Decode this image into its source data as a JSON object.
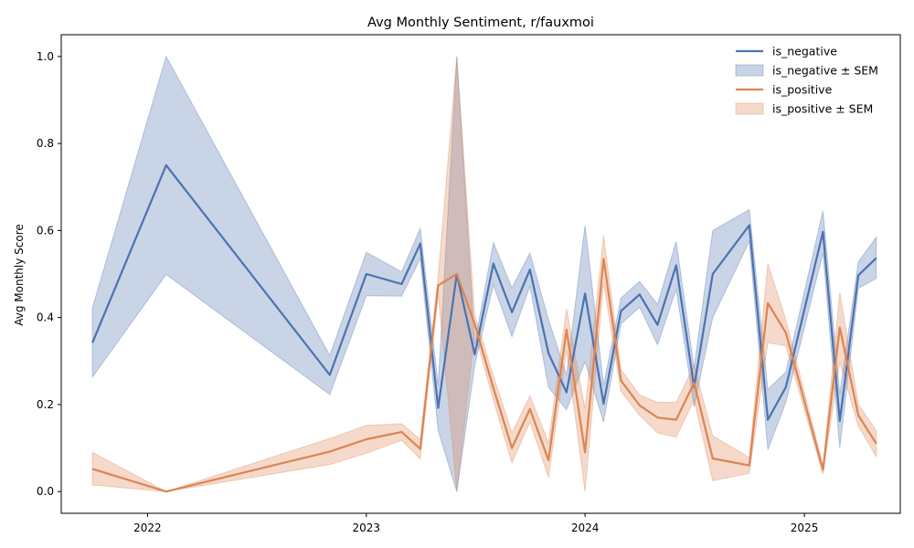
{
  "chart_data": {
    "type": "line",
    "title": "Avg Monthly Sentiment, r/fauxmoi",
    "xlabel": "",
    "ylabel": "Avg Monthly Score",
    "xlim": [
      "2021-08-10",
      "2025-06-10"
    ],
    "ylim": [
      -0.05,
      1.05
    ],
    "xticks": [
      {
        "date": "2022-01-01",
        "label": "2022"
      },
      {
        "date": "2023-01-01",
        "label": "2023"
      },
      {
        "date": "2024-01-01",
        "label": "2024"
      },
      {
        "date": "2025-01-01",
        "label": "2025"
      }
    ],
    "yticks": [
      {
        "value": 0.0,
        "label": "0.0"
      },
      {
        "value": 0.2,
        "label": "0.2"
      },
      {
        "value": 0.4,
        "label": "0.4"
      },
      {
        "value": 0.6,
        "label": "0.6"
      },
      {
        "value": 0.8,
        "label": "0.8"
      },
      {
        "value": 1.0,
        "label": "1.0"
      }
    ],
    "grid": false,
    "legend_position": "top-right",
    "legend": [
      {
        "label": "is_negative",
        "kind": "line",
        "color": "#4c72b0"
      },
      {
        "label": "is_negative ± SEM",
        "kind": "band",
        "color": "#4c72b0"
      },
      {
        "label": "is_positive",
        "kind": "line",
        "color": "#dd8452"
      },
      {
        "label": "is_positive ± SEM",
        "kind": "band",
        "color": "#dd8452"
      }
    ],
    "series": [
      {
        "name": "is_negative",
        "color": "#4c72b0",
        "points": [
          {
            "date": "2021-10-01",
            "mean": 0.342,
            "low": 0.263,
            "high": 0.422
          },
          {
            "date": "2022-02-01",
            "mean": 0.75,
            "low": 0.499,
            "high": 1.0
          },
          {
            "date": "2022-11-01",
            "mean": 0.268,
            "low": 0.223,
            "high": 0.313
          },
          {
            "date": "2023-01-01",
            "mean": 0.5,
            "low": 0.45,
            "high": 0.55
          },
          {
            "date": "2023-03-01",
            "mean": 0.477,
            "low": 0.449,
            "high": 0.505
          },
          {
            "date": "2023-04-01",
            "mean": 0.57,
            "low": 0.535,
            "high": 0.605
          },
          {
            "date": "2023-05-01",
            "mean": 0.192,
            "low": 0.14,
            "high": 0.245
          },
          {
            "date": "2023-06-01",
            "mean": 0.5,
            "low": 0.0,
            "high": 1.0
          },
          {
            "date": "2023-07-01",
            "mean": 0.315,
            "low": 0.29,
            "high": 0.34
          },
          {
            "date": "2023-08-01",
            "mean": 0.524,
            "low": 0.475,
            "high": 0.572
          },
          {
            "date": "2023-09-01",
            "mean": 0.412,
            "low": 0.356,
            "high": 0.468
          },
          {
            "date": "2023-10-01",
            "mean": 0.51,
            "low": 0.472,
            "high": 0.548
          },
          {
            "date": "2023-11-01",
            "mean": 0.318,
            "low": 0.24,
            "high": 0.395
          },
          {
            "date": "2023-12-01",
            "mean": 0.228,
            "low": 0.188,
            "high": 0.268
          },
          {
            "date": "2024-01-01",
            "mean": 0.455,
            "low": 0.298,
            "high": 0.612
          },
          {
            "date": "2024-02-01",
            "mean": 0.202,
            "low": 0.16,
            "high": 0.244
          },
          {
            "date": "2024-03-01",
            "mean": 0.415,
            "low": 0.385,
            "high": 0.445
          },
          {
            "date": "2024-04-01",
            "mean": 0.453,
            "low": 0.424,
            "high": 0.483
          },
          {
            "date": "2024-05-01",
            "mean": 0.383,
            "low": 0.337,
            "high": 0.43
          },
          {
            "date": "2024-06-01",
            "mean": 0.52,
            "low": 0.465,
            "high": 0.575
          },
          {
            "date": "2024-07-01",
            "mean": 0.24,
            "low": 0.195,
            "high": 0.285
          },
          {
            "date": "2024-08-01",
            "mean": 0.5,
            "low": 0.4,
            "high": 0.6
          },
          {
            "date": "2024-10-01",
            "mean": 0.612,
            "low": 0.575,
            "high": 0.648
          },
          {
            "date": "2024-11-01",
            "mean": 0.165,
            "low": 0.096,
            "high": 0.235
          },
          {
            "date": "2024-12-01",
            "mean": 0.24,
            "low": 0.205,
            "high": 0.275
          },
          {
            "date": "2025-02-01",
            "mean": 0.597,
            "low": 0.548,
            "high": 0.645
          },
          {
            "date": "2025-03-01",
            "mean": 0.162,
            "low": 0.1,
            "high": 0.224
          },
          {
            "date": "2025-04-01",
            "mean": 0.497,
            "low": 0.467,
            "high": 0.528
          },
          {
            "date": "2025-05-01",
            "mean": 0.537,
            "low": 0.49,
            "high": 0.585
          }
        ]
      },
      {
        "name": "is_positive",
        "color": "#dd8452",
        "points": [
          {
            "date": "2021-10-01",
            "mean": 0.052,
            "low": 0.015,
            "high": 0.09
          },
          {
            "date": "2022-02-01",
            "mean": 0.0,
            "low": 0.0,
            "high": 0.0
          },
          {
            "date": "2022-11-01",
            "mean": 0.092,
            "low": 0.062,
            "high": 0.122
          },
          {
            "date": "2023-01-01",
            "mean": 0.12,
            "low": 0.088,
            "high": 0.152
          },
          {
            "date": "2023-03-01",
            "mean": 0.137,
            "low": 0.118,
            "high": 0.156
          },
          {
            "date": "2023-04-01",
            "mean": 0.098,
            "low": 0.075,
            "high": 0.12
          },
          {
            "date": "2023-05-01",
            "mean": 0.474,
            "low": 0.454,
            "high": 0.494
          },
          {
            "date": "2023-06-01",
            "mean": 0.5,
            "low": 0.0,
            "high": 1.0
          },
          {
            "date": "2023-07-01",
            "mean": 0.385,
            "low": 0.365,
            "high": 0.405
          },
          {
            "date": "2023-08-01",
            "mean": 0.238,
            "low": 0.21,
            "high": 0.266
          },
          {
            "date": "2023-09-01",
            "mean": 0.1,
            "low": 0.066,
            "high": 0.135
          },
          {
            "date": "2023-10-01",
            "mean": 0.19,
            "low": 0.16,
            "high": 0.22
          },
          {
            "date": "2023-11-01",
            "mean": 0.072,
            "low": 0.032,
            "high": 0.112
          },
          {
            "date": "2023-12-01",
            "mean": 0.372,
            "low": 0.325,
            "high": 0.42
          },
          {
            "date": "2024-01-01",
            "mean": 0.09,
            "low": 0.0,
            "high": 0.19
          },
          {
            "date": "2024-02-01",
            "mean": 0.535,
            "low": 0.48,
            "high": 0.588
          },
          {
            "date": "2024-03-01",
            "mean": 0.255,
            "low": 0.23,
            "high": 0.28
          },
          {
            "date": "2024-04-01",
            "mean": 0.198,
            "low": 0.175,
            "high": 0.222
          },
          {
            "date": "2024-05-01",
            "mean": 0.17,
            "low": 0.135,
            "high": 0.205
          },
          {
            "date": "2024-06-01",
            "mean": 0.165,
            "low": 0.125,
            "high": 0.205
          },
          {
            "date": "2024-07-01",
            "mean": 0.25,
            "low": 0.21,
            "high": 0.29
          },
          {
            "date": "2024-08-01",
            "mean": 0.076,
            "low": 0.025,
            "high": 0.128
          },
          {
            "date": "2024-10-01",
            "mean": 0.06,
            "low": 0.042,
            "high": 0.078
          },
          {
            "date": "2024-11-01",
            "mean": 0.433,
            "low": 0.342,
            "high": 0.524
          },
          {
            "date": "2024-12-01",
            "mean": 0.365,
            "low": 0.335,
            "high": 0.395
          },
          {
            "date": "2025-02-01",
            "mean": 0.05,
            "low": 0.04,
            "high": 0.06
          },
          {
            "date": "2025-03-01",
            "mean": 0.377,
            "low": 0.298,
            "high": 0.458
          },
          {
            "date": "2025-04-01",
            "mean": 0.175,
            "low": 0.15,
            "high": 0.2
          },
          {
            "date": "2025-05-01",
            "mean": 0.11,
            "low": 0.08,
            "high": 0.14
          }
        ]
      }
    ]
  }
}
